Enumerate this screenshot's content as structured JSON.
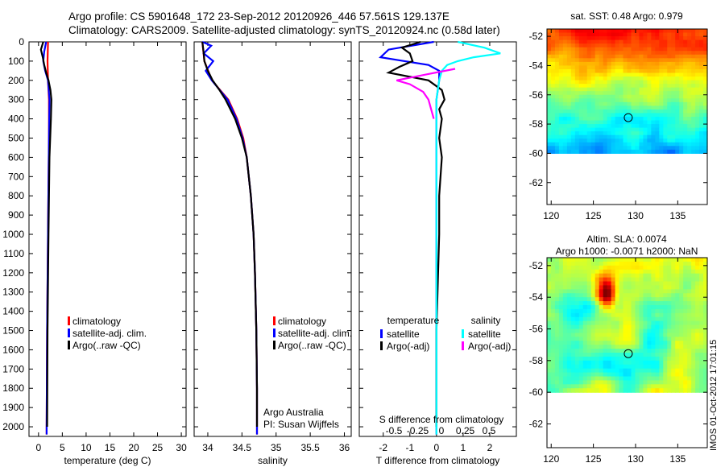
{
  "header": {
    "line1": "Argo profile: CS 5901648_172 23-Sep-2012 20120926_446 57.561S 129.137E",
    "line2": "Climatology: CARS2009. Satellite-adjusted climatology: synTS_20120924.nc (0.58d later)"
  },
  "side_label": "IMOS 01-Oct-2012 17:01:15",
  "colors": {
    "climatology": "#ff0000",
    "satellite": "#0000ff",
    "argo": "#000000",
    "sat_salinity": "#00ffff",
    "argo_salinity": "#ff00ff"
  },
  "chart_data": [
    {
      "type": "line",
      "ylabel_ticks": [
        0,
        100,
        200,
        300,
        400,
        500,
        600,
        700,
        800,
        900,
        1000,
        1100,
        1200,
        1300,
        1400,
        1500,
        1600,
        1700,
        1800,
        1900,
        2000
      ],
      "xlabel": "temperature (deg C)",
      "xticks": [
        "0",
        "5",
        "10",
        "15",
        "20",
        "25",
        "30"
      ],
      "xlim": [
        -2,
        31
      ],
      "ylim": [
        2050,
        0
      ],
      "legend": [
        "climatology",
        "satellite-adj. clim.",
        "Argo(..raw -QC)"
      ],
      "legend_placement": "lower-right",
      "series": [
        {
          "name": "climatology",
          "depth": [
            0,
            100,
            200,
            300,
            500,
            1000,
            1500,
            2000,
            2040
          ],
          "value": [
            2.0,
            1.9,
            2.0,
            2.2,
            2.2,
            2.0,
            1.8,
            1.7,
            1.7
          ]
        },
        {
          "name": "satellite-adj. clim.",
          "depth": [
            0,
            50,
            100,
            150,
            200,
            300,
            500,
            1000,
            1500,
            2000,
            2040
          ],
          "value": [
            1.6,
            1.2,
            1.0,
            1.4,
            2.0,
            2.3,
            2.2,
            2.0,
            1.8,
            1.7,
            1.7
          ]
        },
        {
          "name": "Argo(..raw -QC)",
          "depth": [
            0,
            40,
            80,
            120,
            160,
            200,
            250,
            300,
            400,
            600,
            1000,
            1500,
            2000
          ],
          "value": [
            1.0,
            0.5,
            0.9,
            1.2,
            1.6,
            2.1,
            2.5,
            2.7,
            2.6,
            2.3,
            2.1,
            1.9,
            1.8
          ]
        }
      ]
    },
    {
      "type": "line",
      "xlabel": "salinity",
      "xticks": [
        "34",
        "34.5",
        "35",
        "35.5",
        "36"
      ],
      "xlim": [
        33.8,
        36.1
      ],
      "ylim": [
        2050,
        0
      ],
      "legend": [
        "climatology",
        "satellite-adj. clim.",
        "Argo(..raw -QC)"
      ],
      "legend_placement": "lower-right",
      "annotation": [
        "Argo Australia",
        "PI: Susan Wijffels"
      ],
      "series": [
        {
          "name": "climatology",
          "depth": [
            0,
            100,
            200,
            300,
            400,
            500,
            600,
            800,
            1000,
            1200,
            1500,
            1800,
            2040
          ],
          "value": [
            33.92,
            33.95,
            34.06,
            34.3,
            34.43,
            34.52,
            34.57,
            34.63,
            34.67,
            34.69,
            34.71,
            34.72,
            34.72
          ]
        },
        {
          "name": "satellite-adj. clim.",
          "depth": [
            0,
            20,
            60,
            100,
            150,
            200,
            300,
            400,
            500,
            600,
            800,
            1000,
            1200,
            1500,
            1800,
            2040
          ],
          "value": [
            33.92,
            34.05,
            33.94,
            34.08,
            33.97,
            34.06,
            34.29,
            34.42,
            34.51,
            34.57,
            34.63,
            34.67,
            34.69,
            34.71,
            34.72,
            34.72
          ]
        },
        {
          "name": "Argo(..raw -QC)",
          "depth": [
            0,
            60,
            100,
            150,
            200,
            250,
            300,
            400,
            500,
            600,
            800,
            1000,
            1200,
            1500,
            1800,
            2000
          ],
          "value": [
            33.92,
            33.94,
            33.95,
            34.0,
            34.07,
            34.17,
            34.26,
            34.4,
            34.5,
            34.57,
            34.63,
            34.67,
            34.69,
            34.71,
            34.72,
            34.72
          ]
        }
      ]
    },
    {
      "type": "line",
      "xlabel": "T difference from climatology",
      "xticks": [
        "-2",
        "-1",
        "0",
        "1",
        "2"
      ],
      "xlim": [
        -2.9,
        3.0
      ],
      "ylim": [
        2050,
        0
      ],
      "top_axis_label": "S difference from climatology",
      "top_axis_ticks": [
        "-0.5",
        "-0.25",
        "0",
        "0.25",
        "0.5"
      ],
      "legend_temperature": "temperature",
      "legend_salinity": "salinity",
      "legend": [
        "satellite",
        "Argo(-adj)",
        "satellite",
        "Argo(-adj)"
      ],
      "series": [
        {
          "name": "satellite",
          "depth": [
            0,
            40,
            80,
            100,
            120,
            150,
            200,
            300,
            500,
            1000,
            1500,
            2000,
            2040
          ],
          "value": [
            -0.1,
            -1.8,
            -2.1,
            -1.2,
            -0.3,
            0.1,
            0.1,
            0.0,
            0.0,
            0.0,
            0.0,
            0.0,
            0.0
          ]
        },
        {
          "name": "Argo(-adj)",
          "depth": [
            0,
            30,
            60,
            100,
            130,
            160,
            200,
            250,
            300,
            350,
            400,
            500,
            600,
            800,
            1000,
            1500,
            2000
          ],
          "value": [
            -0.6,
            -1.3,
            -1.0,
            -0.9,
            -1.4,
            -1.8,
            -0.3,
            0.2,
            0.3,
            0.1,
            0.2,
            0.1,
            0.2,
            0.1,
            0.1,
            0.0,
            0.0
          ]
        },
        {
          "name": "satellite",
          "depth": [
            0,
            30,
            60,
            80,
            100,
            120,
            150,
            200,
            300,
            500,
            1000,
            1500,
            2000,
            2040
          ],
          "value": [
            0.8,
            1.8,
            2.4,
            1.4,
            0.8,
            0.4,
            0.2,
            0.1,
            0.0,
            0.0,
            0.0,
            0.0,
            0.0,
            0.0
          ]
        },
        {
          "name": "Argo(-adj)",
          "depth": [
            140,
            170,
            200,
            220,
            260,
            300,
            350,
            400
          ],
          "value": [
            0.7,
            -0.4,
            -1.5,
            -1.0,
            -0.5,
            -0.3,
            -0.2,
            -0.1
          ]
        }
      ]
    },
    {
      "type": "heatmap",
      "title": "sat. SST: 0.48 Argo: 0.979",
      "xticks": [
        "120",
        "125",
        "130",
        "135"
      ],
      "yticks": [
        "-52",
        "-54",
        "-56",
        "-58",
        "-60",
        "-62"
      ],
      "xlim": [
        119.5,
        138.5
      ],
      "ylim": [
        -63.5,
        -51.5
      ],
      "data_ylim": [
        -60.0,
        -51.5
      ],
      "marker": {
        "lon": 129.137,
        "lat": -57.561
      }
    },
    {
      "type": "heatmap",
      "title": [
        "Altim. SLA: 0.0074",
        "Argo h1000: -0.0071 h2000: NaN"
      ],
      "xticks": [
        "120",
        "125",
        "130",
        "135"
      ],
      "yticks": [
        "-52",
        "-54",
        "-56",
        "-58",
        "-60",
        "-62"
      ],
      "xlim": [
        119.5,
        138.5
      ],
      "ylim": [
        -63.5,
        -51.5
      ],
      "data_ylim": [
        -60.0,
        -51.5
      ],
      "marker": {
        "lon": 129.137,
        "lat": -57.561
      }
    }
  ]
}
